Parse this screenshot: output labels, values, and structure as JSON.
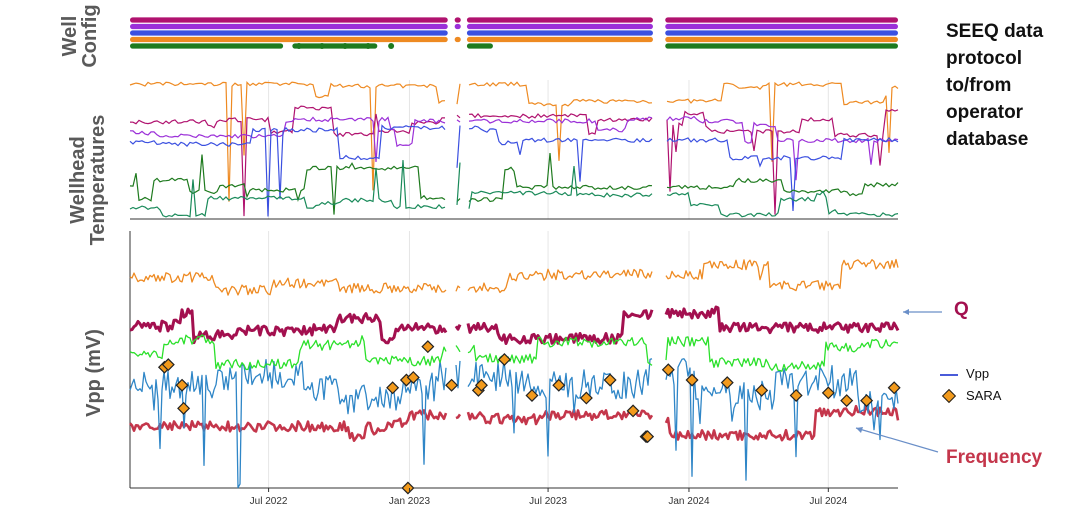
{
  "labels": {
    "panel1": [
      "Well",
      "Config"
    ],
    "panel2": [
      "Wellhead",
      "Temperatures"
    ],
    "panel3": "Vpp (mV)",
    "protocol": [
      "SEEQ data",
      "protocol",
      "to/from",
      "operator",
      "database"
    ],
    "q": "Q",
    "frequency": "Frequency"
  },
  "legend": [
    {
      "label": "Vpp",
      "color": "#4a5bd9",
      "marker": "line"
    },
    {
      "label": "SARA",
      "color": "#f29a1c",
      "marker": "diamond"
    }
  ],
  "colors": {
    "magenta": "#b0126f",
    "purple": "#9b30d8",
    "blue": "#3b50e0",
    "orange": "#ee8a22",
    "green": "#1e7a1e",
    "teal": "#1a8a5a",
    "q": "#a3104f",
    "frequency": "#c4364b",
    "vpp_blue": "#2f86c7",
    "bright_green": "#2be02b",
    "sara": "#f29a1c",
    "annot_arrow": "#6a8fc8"
  },
  "chart_data": {
    "type": "line",
    "xaxis": {
      "start": "2022-01-01",
      "end": "2024-09-30",
      "ticks": [
        "Jul 2022",
        "Jan 2023",
        "Jul 2023",
        "Jan 2024",
        "Jul 2024"
      ]
    },
    "grid": true,
    "gaps": [
      [
        "2023-02-20",
        "2023-03-01"
      ],
      [
        "2023-03-09",
        "2023-03-17"
      ],
      [
        "2023-11-16",
        "2023-12-01"
      ]
    ],
    "panels": [
      {
        "name": "Well Config",
        "type": "status_bars",
        "rows": [
          {
            "color": "magenta",
            "segments": [
              [
                "2022-01-01",
                "2023-02-20"
              ],
              [
                "2023-03-01",
                "2023-03-09"
              ],
              [
                "2023-03-17",
                "2023-11-15"
              ],
              [
                "2023-12-01",
                "2024-09-30"
              ]
            ]
          },
          {
            "color": "purple",
            "segments": [
              [
                "2022-01-01",
                "2023-02-20"
              ],
              [
                "2023-03-01",
                "2023-03-09"
              ],
              [
                "2023-03-17",
                "2023-11-15"
              ],
              [
                "2023-12-01",
                "2024-09-30"
              ]
            ]
          },
          {
            "color": "blue",
            "segments": [
              [
                "2022-01-01",
                "2023-02-20"
              ],
              [
                "2023-03-17",
                "2023-11-15"
              ],
              [
                "2023-12-01",
                "2024-09-30"
              ]
            ]
          },
          {
            "color": "orange",
            "segments": [
              [
                "2022-01-01",
                "2023-02-20"
              ],
              [
                "2023-03-01",
                "2023-03-09"
              ],
              [
                "2023-03-17",
                "2023-11-15"
              ],
              [
                "2023-12-01",
                "2024-09-30"
              ]
            ]
          },
          {
            "color": "green",
            "segments": [
              [
                "2022-01-01",
                "2022-07-20"
              ],
              [
                "2022-08-01",
                "2022-11-20"
              ],
              [
                "2023-03-17",
                "2023-04-20"
              ],
              [
                "2023-12-01",
                "2024-09-30"
              ]
            ]
          }
        ]
      },
      {
        "name": "Wellhead Temperatures",
        "type": "multi_line",
        "series": [
          {
            "color": "orange",
            "level": 0.93
          },
          {
            "color": "magenta",
            "level": 0.7
          },
          {
            "color": "purple",
            "level": 0.62
          },
          {
            "color": "blue",
            "level": 0.55
          },
          {
            "color": "green",
            "level": 0.25
          },
          {
            "color": "teal",
            "level": 0.08
          }
        ]
      },
      {
        "name": "Vpp (mV)",
        "type": "multi_line",
        "series": [
          {
            "name": "Q",
            "color": "q",
            "level": 0.63
          },
          {
            "color": "frequency",
            "level": 0.24
          },
          {
            "name": "Vpp",
            "color": "vpp_blue",
            "level": 0.4
          },
          {
            "color": "bright_green",
            "level": 0.52
          },
          {
            "color": "orange",
            "level": 0.82
          }
        ],
        "sara": [
          {
            "x": "2022-02-15",
            "y": 0.47
          },
          {
            "x": "2022-02-20",
            "y": 0.48
          },
          {
            "x": "2022-03-10",
            "y": 0.4
          },
          {
            "x": "2022-03-12",
            "y": 0.31
          },
          {
            "x": "2022-12-10",
            "y": 0.39
          },
          {
            "x": "2022-12-28",
            "y": 0.42
          },
          {
            "x": "2023-01-06",
            "y": 0.43
          },
          {
            "x": "2023-01-25",
            "y": 0.55
          },
          {
            "x": "2022-12-30",
            "y": 0.0
          },
          {
            "x": "2023-02-25",
            "y": 0.4
          },
          {
            "x": "2023-04-01",
            "y": 0.38
          },
          {
            "x": "2023-04-05",
            "y": 0.4
          },
          {
            "x": "2023-05-05",
            "y": 0.5
          },
          {
            "x": "2023-06-10",
            "y": 0.36
          },
          {
            "x": "2023-07-15",
            "y": 0.4
          },
          {
            "x": "2023-08-20",
            "y": 0.35
          },
          {
            "x": "2023-09-20",
            "y": 0.42
          },
          {
            "x": "2023-10-20",
            "y": 0.3
          },
          {
            "x": "2023-11-06",
            "y": 0.2
          },
          {
            "x": "2023-11-08",
            "y": 0.2
          },
          {
            "x": "2023-12-05",
            "y": 0.46
          },
          {
            "x": "2024-01-05",
            "y": 0.42
          },
          {
            "x": "2024-02-20",
            "y": 0.41
          },
          {
            "x": "2024-04-05",
            "y": 0.38
          },
          {
            "x": "2024-05-20",
            "y": 0.36
          },
          {
            "x": "2024-07-01",
            "y": 0.37
          },
          {
            "x": "2024-07-25",
            "y": 0.34
          },
          {
            "x": "2024-08-20",
            "y": 0.34
          },
          {
            "x": "2024-09-25",
            "y": 0.39
          }
        ]
      }
    ]
  }
}
